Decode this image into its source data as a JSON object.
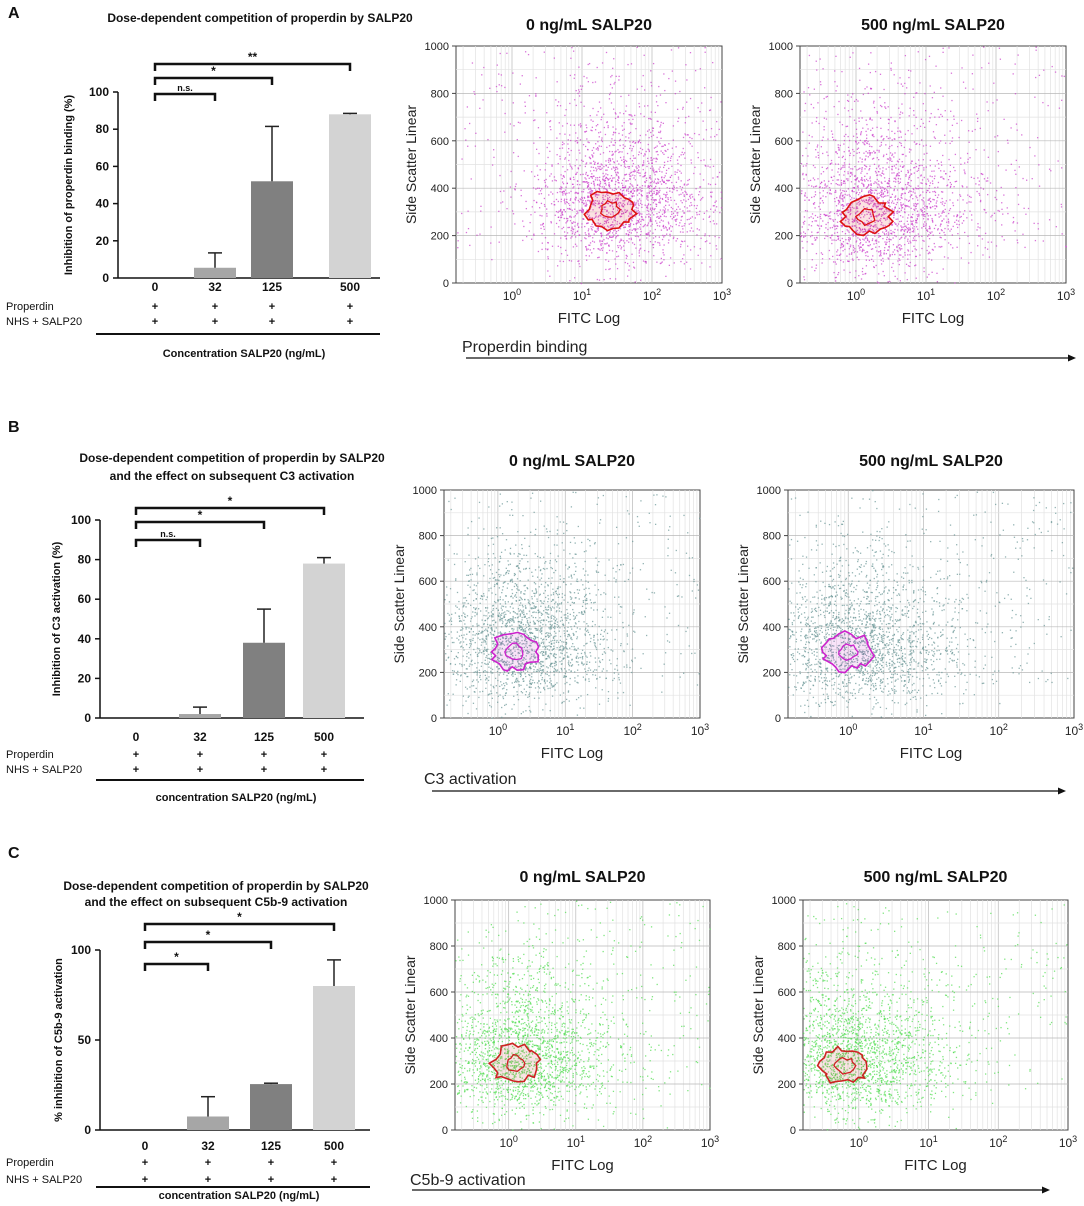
{
  "colors": {
    "bar_dark": "#808080",
    "bar_mid": "#a6a6a6",
    "bar_light": "#d3d3d3",
    "scatter_A_dots": "#cc44cc",
    "scatter_A_contour": "#dd1111",
    "scatter_B_dots": "#6f9a9a",
    "scatter_B_contour": "#cc22cc",
    "scatter_C_dots": "#55dd55",
    "scatter_C_contour": "#cc2222"
  },
  "panels": [
    {
      "id": "A",
      "letter": "A",
      "title_lines": [
        "Dose-dependent competition of properdin by SALP20"
      ],
      "row_labels": [
        "Properdin",
        "NHS + SALP20"
      ],
      "plus_sign": "+",
      "xlabel": "Concentration SALP20 (ng/mL)",
      "arrow_label": "Properdin binding",
      "sig_labels": [
        "n.s.",
        "*",
        "**"
      ],
      "chart_data": {
        "type": "bar",
        "title": "Dose-dependent competition of properdin by SALP20",
        "categories": [
          "0",
          "32",
          "125",
          "500"
        ],
        "values": [
          0,
          5.5,
          52,
          88
        ],
        "errors": [
          0,
          8,
          29.5,
          0.5
        ],
        "ylabel": "Inhibition of properdin binding (%)",
        "xlabel": "Concentration SALP20 (ng/mL)",
        "ylim": [
          0,
          100
        ],
        "yticks": [
          "0",
          "20",
          "40",
          "60",
          "80",
          "100"
        ],
        "significance": [
          {
            "from": "0",
            "to": "32",
            "label": "n.s."
          },
          {
            "from": "0",
            "to": "125",
            "label": "*"
          },
          {
            "from": "0",
            "to": "500",
            "label": "**"
          }
        ]
      },
      "scatter_plots": [
        {
          "title": "0 ng/mL SALP20",
          "xlabel": "FITC Log",
          "ylabel": "Side Scatter Linear",
          "yticks": [
            "0",
            "200",
            "400",
            "600",
            "800",
            "1000"
          ],
          "xticks": [
            "0",
            "1",
            "2",
            "3"
          ],
          "center": [
            1.4,
            310
          ]
        },
        {
          "title": "500 ng/mL SALP20",
          "xlabel": "FITC Log",
          "ylabel": "Side Scatter Linear",
          "yticks": [
            "0",
            "200",
            "400",
            "600",
            "800",
            "1000"
          ],
          "xticks": [
            "0",
            "1",
            "2",
            "3"
          ],
          "center": [
            0.15,
            280
          ]
        }
      ]
    },
    {
      "id": "B",
      "letter": "B",
      "title_lines": [
        "Dose-dependent competition of properdin by SALP20",
        "and the effect on subsequent C3 activation"
      ],
      "row_labels": [
        "Properdin",
        "NHS + SALP20"
      ],
      "plus_sign": "+",
      "xlabel": "concentration SALP20 (ng/mL)",
      "arrow_label": "C3 activation",
      "sig_labels": [
        "n.s.",
        "*",
        "*"
      ],
      "chart_data": {
        "type": "bar",
        "title": "Dose-dependent competition of properdin by SALP20 and the effect on subsequent C3 activation",
        "categories": [
          "0",
          "32",
          "125",
          "500"
        ],
        "values": [
          0,
          2,
          38,
          78
        ],
        "errors": [
          0,
          3.5,
          17,
          3
        ],
        "ylabel": "Inhibition of C3 activation (%)",
        "xlabel": "concentration SALP20 (ng/mL)",
        "ylim": [
          0,
          100
        ],
        "yticks": [
          "0",
          "20",
          "40",
          "60",
          "80",
          "100"
        ],
        "significance": [
          {
            "from": "0",
            "to": "32",
            "label": "n.s."
          },
          {
            "from": "0",
            "to": "125",
            "label": "*"
          },
          {
            "from": "0",
            "to": "500",
            "label": "*"
          }
        ]
      },
      "scatter_plots": [
        {
          "title": "0 ng/mL SALP20",
          "xlabel": "FITC Log",
          "ylabel": "Side Scatter Linear",
          "yticks": [
            "0",
            "200",
            "400",
            "600",
            "800",
            "1000"
          ],
          "xticks": [
            "0",
            "1",
            "2",
            "3"
          ],
          "center": [
            0.25,
            290
          ]
        },
        {
          "title": "500 ng/mL SALP20",
          "xlabel": "FITC Log",
          "ylabel": "Side Scatter Linear",
          "yticks": [
            "0",
            "200",
            "400",
            "600",
            "800",
            "1000"
          ],
          "xticks": [
            "0",
            "1",
            "2",
            "3"
          ],
          "center": [
            0.0,
            290
          ]
        }
      ]
    },
    {
      "id": "C",
      "letter": "C",
      "title_lines": [
        "Dose-dependent competition of properdin by SALP20",
        "and the effect on subsequent C5b-9 activation"
      ],
      "row_labels": [
        "Properdin",
        "NHS + SALP20"
      ],
      "plus_sign": "+",
      "xlabel": "concentration SALP20 (ng/mL)",
      "arrow_label": "C5b-9 activation",
      "sig_labels": [
        "*",
        "*",
        "*"
      ],
      "chart_data": {
        "type": "bar",
        "title": "Dose-dependent competition of properdin by SALP20 and the effect on subsequent C5b-9 activation",
        "categories": [
          "0",
          "32",
          "125",
          "500"
        ],
        "values": [
          0,
          7.5,
          25.5,
          80
        ],
        "errors": [
          0,
          11,
          0.5,
          14.5
        ],
        "ylabel": "% inhibition of C5b-9 activation",
        "xlabel": "concentration SALP20 (ng/mL)",
        "ylim": [
          0,
          100
        ],
        "yticks": [
          "0",
          "50",
          "100"
        ],
        "significance": [
          {
            "from": "0",
            "to": "32",
            "label": "*"
          },
          {
            "from": "0",
            "to": "125",
            "label": "*"
          },
          {
            "from": "0",
            "to": "500",
            "label": "*"
          }
        ]
      },
      "scatter_plots": [
        {
          "title": "0 ng/mL SALP20",
          "xlabel": "FITC Log",
          "ylabel": "Side Scatter Linear",
          "yticks": [
            "0",
            "200",
            "400",
            "600",
            "800",
            "1000"
          ],
          "xticks": [
            "0",
            "1",
            "2",
            "3"
          ],
          "center": [
            0.1,
            290
          ]
        },
        {
          "title": "500 ng/mL SALP20",
          "xlabel": "FITC Log",
          "ylabel": "Side Scatter Linear",
          "yticks": [
            "0",
            "200",
            "400",
            "600",
            "800",
            "1000"
          ],
          "xticks": [
            "0",
            "1",
            "2",
            "3"
          ],
          "center": [
            -0.2,
            280
          ]
        }
      ]
    }
  ]
}
